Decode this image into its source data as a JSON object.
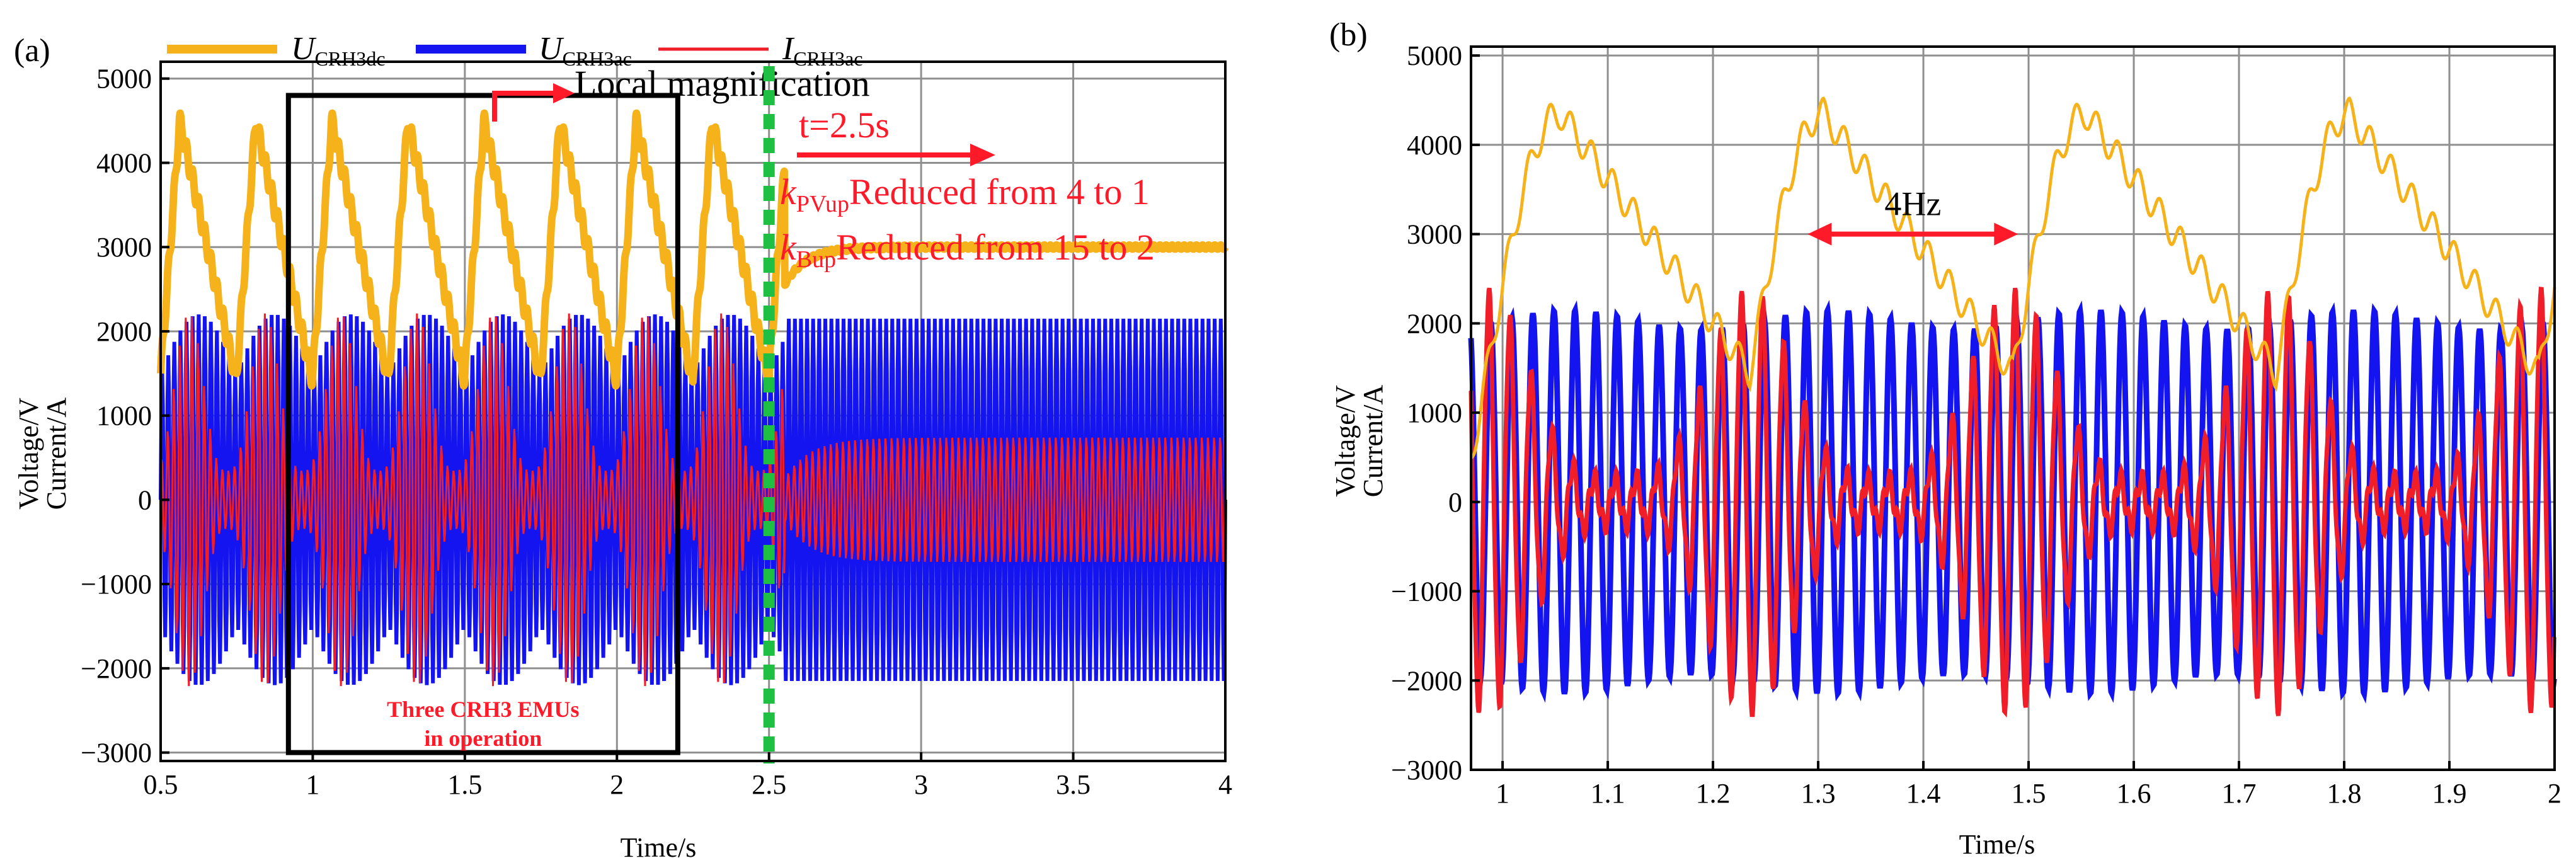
{
  "colors": {
    "udc": "#f5b21a",
    "uac": "#1414f0",
    "iac": "#f01e28",
    "grid": "#8f8f8f",
    "frame": "#000000",
    "annot": "#ff1a2a",
    "marker": "#1fbf43"
  },
  "chart_data": [
    {
      "panel_label": "(a)",
      "type": "line",
      "xlabel": "Time/s",
      "ylabel_line1": "Voltage/V",
      "ylabel_line2": "Current/A",
      "xlim": [
        0.5,
        4
      ],
      "ylim": [
        -3100,
        5200
      ],
      "xticks": [
        0.5,
        1,
        1.5,
        2,
        2.5,
        3,
        3.5,
        4
      ],
      "xtick_labels": [
        "0.5",
        "1",
        "1.5",
        "2",
        "2.5",
        "3",
        "3.5",
        "4"
      ],
      "yticks": [
        -3000,
        -2000,
        -1000,
        0,
        1000,
        2000,
        3000,
        4000,
        5000
      ],
      "ytick_labels": [
        "−3000",
        "−2000",
        "−1000",
        "0",
        "1000",
        "2000",
        "3000",
        "4000",
        "5000"
      ],
      "legend": [
        {
          "main": "U",
          "sub": "CRH3dc",
          "color": "#f5b21a"
        },
        {
          "main": "U",
          "sub": "CRH3ac",
          "color": "#1414f0"
        },
        {
          "main": "I",
          "sub": "CRH3ac",
          "color": "#f01e28"
        }
      ],
      "series": [
        {
          "name": "U_CRH3dc",
          "description": "oscillates at 4 Hz between about 1350 V and 4500 V until t = 2.5 s, then settles near 3000 V",
          "low_osc_min": 1350,
          "low_osc_max": 4500,
          "steady_value": 3000
        },
        {
          "name": "U_CRH3ac",
          "description": "50 Hz carrier, amplitude about 2200 V, envelope modulated before 2.5 s",
          "amplitude": 2150
        },
        {
          "name": "I_CRH3ac",
          "description": "50 Hz current, envelope swings up to about 2300 A before 2.5 s, about 750 A after",
          "amplitude_before_max": 2300,
          "amplitude_after": 750
        }
      ],
      "annotations": {
        "magnify_label": "Local magnification",
        "event_time_label": "t=2.5s",
        "event_time": 2.5,
        "kpv_main": "k",
        "kpv_sub": "PVup",
        "kpv_text": "Reduced from 4 to 1",
        "kb_main": "k",
        "kb_sub": "Bup",
        "kb_text": "Reduced from 15 to 2",
        "emu_line1": "Three CRH3 EMUs",
        "emu_line2": "in operation",
        "box_x_range": [
          0.92,
          2.2
        ],
        "box_y_range": [
          -3000,
          4800
        ]
      }
    },
    {
      "panel_label": "(b)",
      "type": "line",
      "xlabel": "Time/s",
      "ylabel_line1": "Voltage/V",
      "ylabel_line2": "Current/A",
      "xlim": [
        0.97,
        2
      ],
      "ylim": [
        -3000,
        5100
      ],
      "xticks": [
        1,
        1.1,
        1.2,
        1.3,
        1.4,
        1.5,
        1.6,
        1.7,
        1.8,
        1.9,
        2
      ],
      "xtick_labels": [
        "1",
        "1.1",
        "1.2",
        "1.3",
        "1.4",
        "1.5",
        "1.6",
        "1.7",
        "1.8",
        "1.9",
        "2"
      ],
      "yticks": [
        -3000,
        -2000,
        -1000,
        0,
        1000,
        2000,
        3000,
        4000,
        5000
      ],
      "ytick_labels": [
        "−3000",
        "−2000",
        "−1000",
        "0",
        "1000",
        "2000",
        "3000",
        "4000",
        "5000"
      ],
      "series": [
        {
          "name": "U_CRH3dc",
          "description": "4 Hz oscillation between about 1400 V and 4600 V"
        },
        {
          "name": "U_CRH3ac",
          "description": "50 Hz sinusoid, amplitude about 2200 V"
        },
        {
          "name": "I_CRH3ac",
          "description": "50 Hz current with 4 Hz beating envelope, peaks about 2400 A"
        }
      ],
      "annotations": {
        "freq_label": "4Hz",
        "arrow_x_range": [
          1.29,
          1.49
        ]
      }
    }
  ]
}
